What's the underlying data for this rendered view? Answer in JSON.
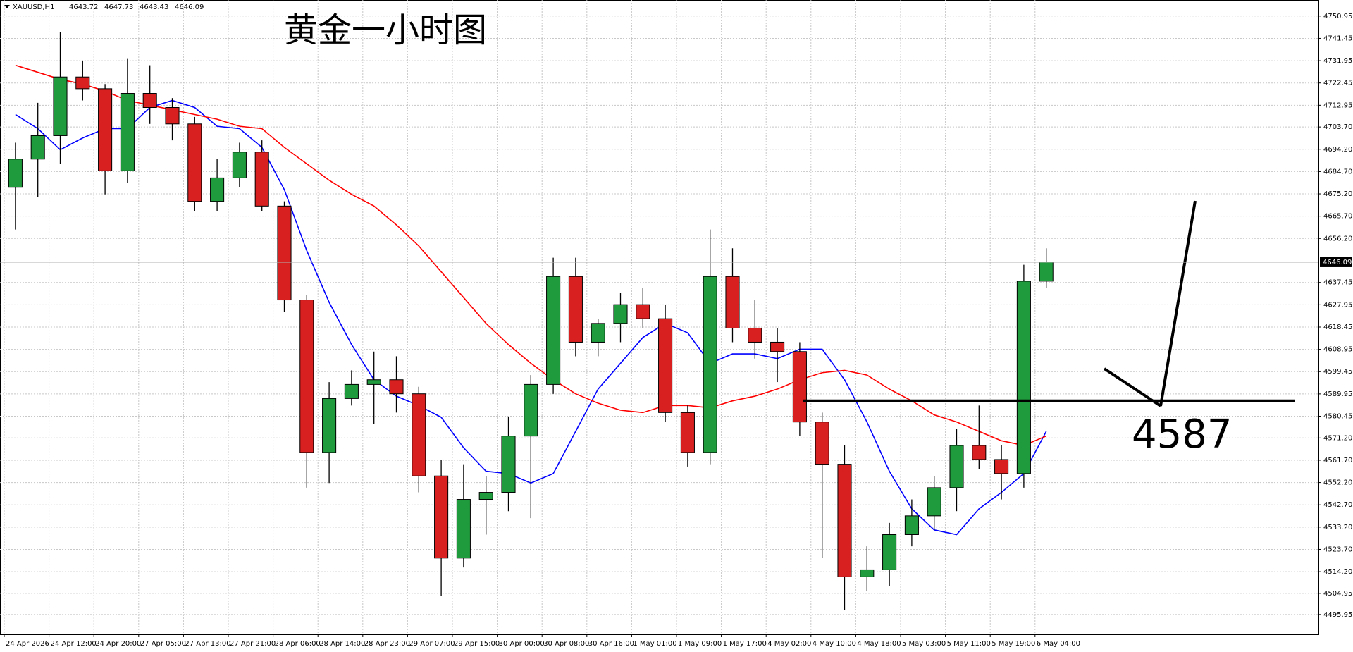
{
  "chart_data": {
    "type": "candlestick",
    "title": "黄金一小时图",
    "symbol": "XAUUSD,H1",
    "header_values": [
      4643.72,
      4647.73,
      4643.43,
      4646.09
    ],
    "last_price": 4646.09,
    "annotation": {
      "level": 4587
    },
    "categories": [
      "24 Apr 2026",
      null,
      "24 Apr 12:00",
      null,
      "24 Apr 20:00",
      null,
      "27 Apr 05:00",
      null,
      "27 Apr 13:00",
      null,
      "27 Apr 21:00",
      null,
      "28 Apr 06:00",
      null,
      "28 Apr 14:00",
      null,
      "28 Apr 23:00",
      null,
      "29 Apr 07:00",
      null,
      "29 Apr 15:00",
      null,
      "30 Apr 00:00",
      null,
      "30 Apr 08:00",
      null,
      "30 Apr 16:00",
      null,
      "1 May 01:00",
      null,
      "1 May 09:00",
      null,
      "1 May 17:00",
      null,
      "4 May 02:00",
      null,
      "4 May 10:00",
      null,
      "4 May 18:00",
      null,
      "5 May 03:00",
      null,
      "5 May 11:00",
      null,
      "5 May 19:00",
      null,
      "6 May 04:00"
    ],
    "open": [
      4678,
      4690,
      4700,
      4725,
      4720,
      4685,
      4718,
      4712,
      4705,
      4672,
      4682,
      4693,
      4670,
      4630,
      4565,
      4588,
      4594,
      4596,
      4590,
      4555,
      4520,
      4545,
      4548,
      4572,
      4594,
      4640,
      4612,
      4620,
      4628,
      4622,
      4582,
      4565,
      4640,
      4618,
      4612,
      4608,
      4578,
      4560,
      4512,
      4515,
      4530,
      4538,
      4550,
      4568,
      4562,
      4556,
      4638
    ],
    "high": [
      4697,
      4714,
      4744,
      4732,
      4722,
      4733,
      4730,
      4716,
      4708,
      4690,
      4697,
      4698,
      4672,
      4632,
      4595,
      4600,
      4608,
      4606,
      4593,
      4562,
      4560,
      4555,
      4580,
      4598,
      4648,
      4648,
      4622,
      4633,
      4635,
      4628,
      4585,
      4660,
      4652,
      4630,
      4618,
      4612,
      4582,
      4568,
      4525,
      4535,
      4545,
      4555,
      4575,
      4585,
      4568,
      4645,
      4652
    ],
    "low": [
      4660,
      4674,
      4688,
      4715,
      4675,
      4680,
      4705,
      4698,
      4668,
      4668,
      4678,
      4668,
      4625,
      4550,
      4552,
      4585,
      4577,
      4582,
      4548,
      4504,
      4516,
      4530,
      4540,
      4537,
      4590,
      4606,
      4606,
      4612,
      4618,
      4578,
      4559,
      4560,
      4612,
      4605,
      4595,
      4572,
      4520,
      4498,
      4506,
      4508,
      4525,
      4532,
      4540,
      4558,
      4545,
      4550,
      4635
    ],
    "close": [
      4690,
      4700,
      4725,
      4720,
      4685,
      4718,
      4712,
      4705,
      4672,
      4682,
      4693,
      4670,
      4630,
      4565,
      4588,
      4594,
      4596,
      4590,
      4555,
      4520,
      4545,
      4548,
      4572,
      4594,
      4640,
      4612,
      4620,
      4628,
      4622,
      4582,
      4565,
      4640,
      4618,
      4612,
      4608,
      4578,
      4560,
      4512,
      4515,
      4530,
      4538,
      4550,
      4568,
      4562,
      4556,
      4638,
      4646.09
    ],
    "up_color": "#1f9a3c",
    "down_color": "#d82020",
    "ma_lines": [
      {
        "color": "#0000ff",
        "values": [
          4709,
          4703,
          4694,
          4699,
          4703,
          4703,
          4712,
          4715,
          4712,
          4704,
          4703,
          4695,
          4677,
          4651,
          4629,
          4611,
          4596,
          4589,
          4585,
          4580,
          4567,
          4557,
          4556,
          4552,
          4556,
          4574,
          4592,
          4603,
          4614,
          4620,
          4616,
          4603,
          4607,
          4607,
          4605,
          4609,
          4609,
          4596,
          4578,
          4557,
          4541,
          4532,
          4530,
          4541,
          4548,
          4556,
          4574
        ]
      },
      {
        "color": "#ff0000",
        "values": [
          4730,
          4727,
          4724,
          4722,
          4719,
          4715,
          4713,
          4711,
          4709,
          4707,
          4704,
          4703,
          4695,
          4688,
          4681,
          4675,
          4670,
          4662,
          4653,
          4642,
          4631,
          4620,
          4611,
          4603,
          4596,
          4590,
          4586,
          4583,
          4582,
          4585,
          4585,
          4584,
          4587,
          4589,
          4592,
          4596,
          4599,
          4600,
          4598,
          4592,
          4587,
          4581,
          4578,
          4574,
          4570,
          4568,
          4572
        ]
      }
    ],
    "ylim": [
      4487.5,
      4757.8
    ],
    "yticks": [
      4750.95,
      4741.45,
      4731.95,
      4722.45,
      4712.95,
      {
        "value": 4703.7,
        "label": "4703.70"
      },
      {
        "value": 4694.2,
        "label": "4694.20"
      },
      {
        "value": 4684.7,
        "label": "4684.70"
      },
      {
        "value": 4675.2,
        "label": "4675.20"
      },
      {
        "value": 4665.7,
        "label": "4665.70"
      },
      {
        "value": 4656.2,
        "label": "4656.20"
      },
      4637.45,
      4627.95,
      4618.45,
      4608.95,
      4599.45,
      4589.95,
      4580.45,
      {
        "value": 4571.2,
        "label": "4571.20"
      },
      {
        "value": 4561.7,
        "label": "4561.70"
      },
      {
        "value": 4552.2,
        "label": "4552.20"
      },
      {
        "value": 4542.7,
        "label": "4542.70"
      },
      {
        "value": 4533.2,
        "label": "4533.20"
      },
      {
        "value": 4523.7,
        "label": "4523.70"
      },
      {
        "value": 4514.2,
        "label": "4514.20"
      },
      4504.95,
      4495.95
    ],
    "grid": true
  }
}
